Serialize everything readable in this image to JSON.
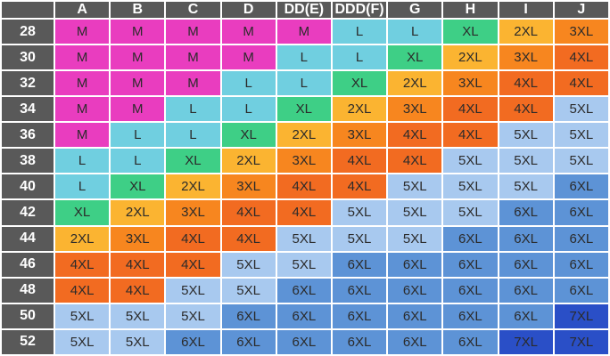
{
  "table": {
    "columns": [
      "A",
      "B",
      "C",
      "D",
      "DD(E)",
      "DDD(F)",
      "G",
      "H",
      "I",
      "J"
    ],
    "rows": [
      {
        "label": "28",
        "cells": [
          "M",
          "M",
          "M",
          "M",
          "M",
          "L",
          "L",
          "XL",
          "2XL",
          "3XL"
        ]
      },
      {
        "label": "30",
        "cells": [
          "M",
          "M",
          "M",
          "M",
          "L",
          "L",
          "XL",
          "2XL",
          "3XL",
          "4XL"
        ]
      },
      {
        "label": "32",
        "cells": [
          "M",
          "M",
          "M",
          "L",
          "L",
          "XL",
          "2XL",
          "3XL",
          "4XL",
          "4XL"
        ]
      },
      {
        "label": "34",
        "cells": [
          "M",
          "M",
          "L",
          "L",
          "XL",
          "2XL",
          "3XL",
          "4XL",
          "4XL",
          "5XL"
        ]
      },
      {
        "label": "36",
        "cells": [
          "M",
          "L",
          "L",
          "XL",
          "2XL",
          "3XL",
          "4XL",
          "4XL",
          "5XL",
          "5XL"
        ]
      },
      {
        "label": "38",
        "cells": [
          "L",
          "L",
          "XL",
          "2XL",
          "3XL",
          "4XL",
          "4XL",
          "5XL",
          "5XL",
          "5XL"
        ]
      },
      {
        "label": "40",
        "cells": [
          "L",
          "XL",
          "2XL",
          "3XL",
          "4XL",
          "4XL",
          "5XL",
          "5XL",
          "5XL",
          "6XL"
        ]
      },
      {
        "label": "42",
        "cells": [
          "XL",
          "2XL",
          "3XL",
          "4XL",
          "4XL",
          "5XL",
          "5XL",
          "5XL",
          "6XL",
          "6XL"
        ]
      },
      {
        "label": "44",
        "cells": [
          "2XL",
          "3XL",
          "4XL",
          "4XL",
          "5XL",
          "5XL",
          "5XL",
          "6XL",
          "6XL",
          "6XL"
        ]
      },
      {
        "label": "46",
        "cells": [
          "4XL",
          "4XL",
          "4XL",
          "5XL",
          "5XL",
          "6XL",
          "6XL",
          "6XL",
          "6XL",
          "6XL"
        ]
      },
      {
        "label": "48",
        "cells": [
          "4XL",
          "4XL",
          "5XL",
          "5XL",
          "6XL",
          "6XL",
          "6XL",
          "6XL",
          "6XL",
          "6XL"
        ]
      },
      {
        "label": "50",
        "cells": [
          "5XL",
          "5XL",
          "5XL",
          "6XL",
          "6XL",
          "6XL",
          "6XL",
          "6XL",
          "6XL",
          "7XL"
        ]
      },
      {
        "label": "52",
        "cells": [
          "5XL",
          "5XL",
          "6XL",
          "6XL",
          "6XL",
          "6XL",
          "6XL",
          "6XL",
          "7XL",
          "7XL"
        ]
      }
    ],
    "colors": {
      "M": "#e93dbf",
      "L": "#70cfe0",
      "XL": "#3ecf86",
      "2XL": "#fbb431",
      "3XL": "#f7861f",
      "4XL": "#f26b21",
      "5XL": "#a8c9ef",
      "6XL": "#5d93d6",
      "7XL": "#2a4fc7"
    }
  }
}
